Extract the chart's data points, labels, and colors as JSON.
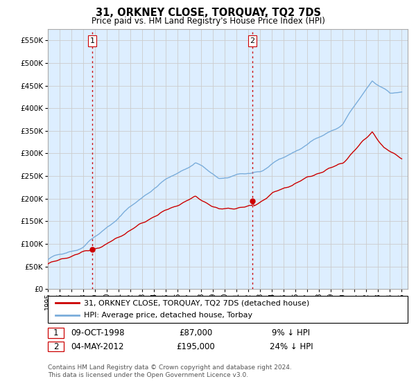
{
  "title": "31, ORKNEY CLOSE, TORQUAY, TQ2 7DS",
  "subtitle": "Price paid vs. HM Land Registry's House Price Index (HPI)",
  "ytick_values": [
    0,
    50000,
    100000,
    150000,
    200000,
    250000,
    300000,
    350000,
    400000,
    450000,
    500000,
    550000
  ],
  "ylim": [
    0,
    575000
  ],
  "xlim_start": 1995.0,
  "xlim_end": 2025.5,
  "hpi_color": "#7aaddb",
  "price_color": "#cc0000",
  "vline_color": "#cc0000",
  "grid_color": "#cccccc",
  "chart_bg_color": "#ddeeff",
  "background_color": "#ffffff",
  "legend_label_property": "31, ORKNEY CLOSE, TORQUAY, TQ2 7DS (detached house)",
  "legend_label_hpi": "HPI: Average price, detached house, Torbay",
  "sale1_date": "09-OCT-1998",
  "sale1_price": 87000,
  "sale1_pct": "9% ↓ HPI",
  "sale1_year": 1998.77,
  "sale2_date": "04-MAY-2012",
  "sale2_price": 195000,
  "sale2_pct": "24% ↓ HPI",
  "sale2_year": 2012.34,
  "footnote": "Contains HM Land Registry data © Crown copyright and database right 2024.\nThis data is licensed under the Open Government Licence v3.0.",
  "xtick_years": [
    1995,
    1996,
    1997,
    1998,
    1999,
    2000,
    2001,
    2002,
    2003,
    2004,
    2005,
    2006,
    2007,
    2008,
    2009,
    2010,
    2011,
    2012,
    2013,
    2014,
    2015,
    2016,
    2017,
    2018,
    2019,
    2020,
    2021,
    2022,
    2023,
    2024,
    2025
  ]
}
